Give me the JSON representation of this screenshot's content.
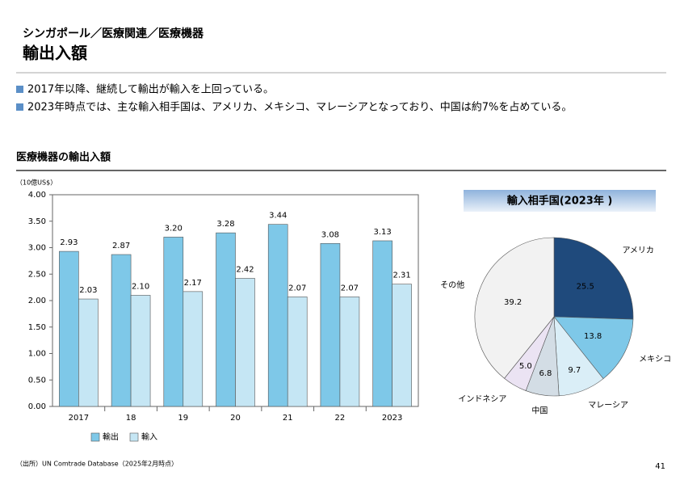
{
  "header": {
    "breadcrumb": "シンガポール／医療関連／医療機器",
    "title": "輸出入額"
  },
  "bullets": [
    "2017年以降、継続して輸出が輸入を上回っている。",
    "2023年時点では、主な輸入相手国は、アメリカ、メキシコ、マレーシアとなっており、中国は約7%を占めている。"
  ],
  "chart_data": [
    {
      "type": "bar",
      "title": "医療機器の輸出入額",
      "y_axis_label": "（10億US$）",
      "categories": [
        "2017",
        "18",
        "19",
        "20",
        "21",
        "22",
        "2023"
      ],
      "series": [
        {
          "name": "輸出",
          "color": "#7ec8e8",
          "values": [
            2.93,
            2.87,
            3.2,
            3.28,
            3.44,
            3.08,
            3.13
          ],
          "value_labels": [
            "2.93",
            "2.87",
            "3.20",
            "3.28",
            "3.44",
            "3.08",
            "3.13"
          ]
        },
        {
          "name": "輸入",
          "color": "#c5e6f4",
          "values": [
            2.03,
            2.1,
            2.17,
            2.42,
            2.07,
            2.07,
            2.31
          ],
          "value_labels": [
            "2.03",
            "2.10",
            "2.17",
            "2.42",
            "2.07",
            "2.07",
            "2.31"
          ]
        }
      ],
      "ylim": [
        0,
        4
      ],
      "yticks": [
        {
          "value": 0,
          "label": "0.00"
        },
        {
          "value": 0.5,
          "label": "0.50"
        },
        {
          "value": 1,
          "label": "1.00"
        },
        {
          "value": 1.5,
          "label": "1.50"
        },
        {
          "value": 2,
          "label": "2.00"
        },
        {
          "value": 2.5,
          "label": "2.50"
        },
        {
          "value": 3,
          "label": "3.00"
        },
        {
          "value": 3.5,
          "label": "3.50"
        },
        {
          "value": 4,
          "label": "4.00"
        }
      ],
      "legend": "bottom"
    },
    {
      "type": "pie",
      "title": "輸入相手国(2023年 )",
      "categories": [
        "アメリカ",
        "メキシコ",
        "マレーシア",
        "中国",
        "インドネシア",
        "その他"
      ],
      "values": [
        25.5,
        13.8,
        9.7,
        6.8,
        5.0,
        39.2
      ],
      "value_labels": [
        "25.5",
        "13.8",
        "9.7",
        "6.8",
        "5.0",
        "39.2"
      ],
      "colors": [
        "#1f4a7c",
        "#7ec8e8",
        "#daeef7",
        "#d3dde5",
        "#ebe3f3",
        "#f2f2f2"
      ]
    }
  ],
  "source": "（出所）UN Comtrade Database（2025年2月時点）",
  "page_number": 41
}
